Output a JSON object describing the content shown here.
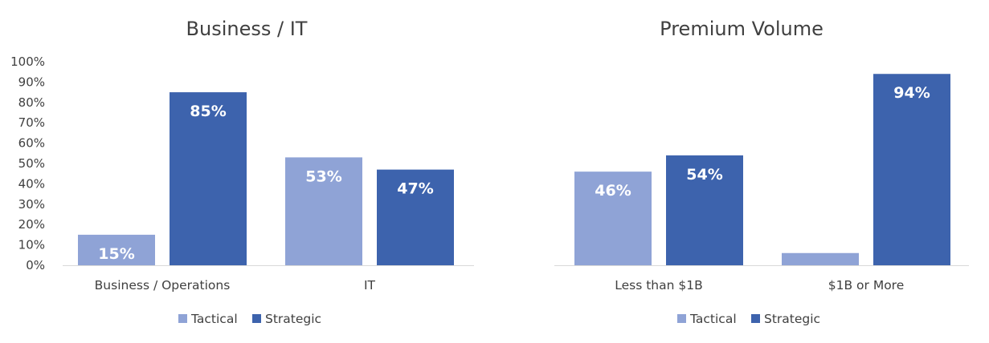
{
  "colors": {
    "tactical": "#8FA3D6",
    "strategic": "#3D63AD",
    "axis": "#D9D9D9",
    "text": "#404040"
  },
  "chart_data": [
    {
      "type": "bar",
      "title": "Business / IT",
      "categories": [
        "Business / Operations",
        "IT"
      ],
      "series": [
        {
          "name": "Tactical",
          "values": [
            15,
            53
          ],
          "labels": [
            "15%",
            "53%"
          ]
        },
        {
          "name": "Strategic",
          "values": [
            85,
            47
          ],
          "labels": [
            "85%",
            "47%"
          ]
        }
      ],
      "ylim": [
        0,
        100
      ],
      "yticks": [
        "0%",
        "10%",
        "20%",
        "30%",
        "40%",
        "50%",
        "60%",
        "70%",
        "80%",
        "90%",
        "100%"
      ],
      "legend": "bottom",
      "grid": false
    },
    {
      "type": "bar",
      "title": "Premium Volume",
      "categories": [
        "Less than $1B",
        "$1B or More"
      ],
      "series": [
        {
          "name": "Tactical",
          "values": [
            46,
            6
          ],
          "labels": [
            "46%",
            ""
          ]
        },
        {
          "name": "Strategic",
          "values": [
            54,
            94
          ],
          "labels": [
            "54%",
            "94%"
          ]
        }
      ],
      "ylim": [
        0,
        100
      ],
      "legend": "bottom",
      "grid": false
    }
  ]
}
